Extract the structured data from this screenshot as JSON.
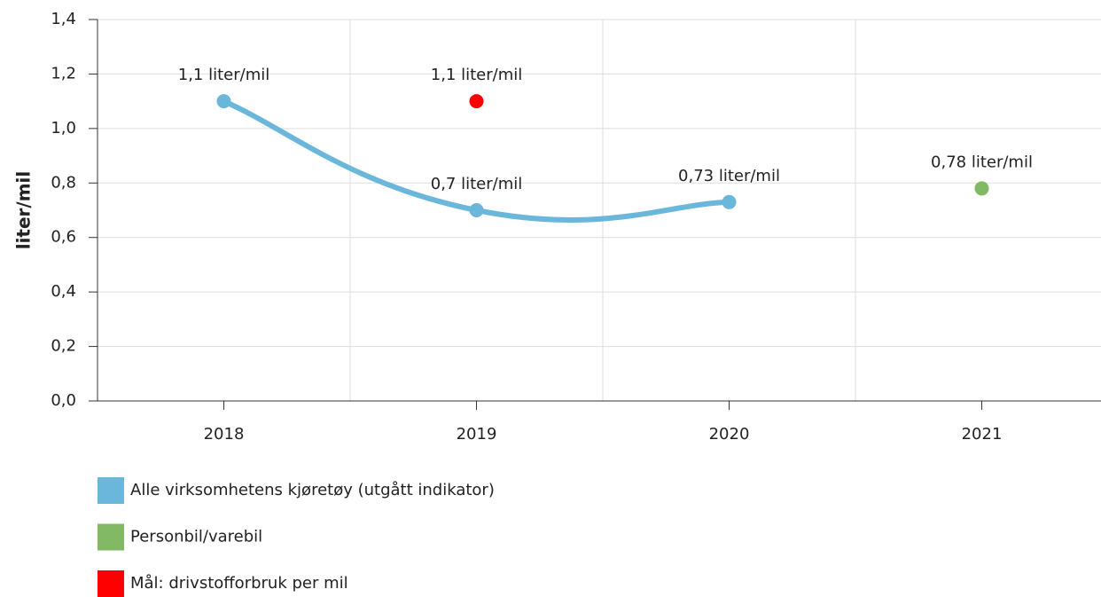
{
  "chart_data": {
    "type": "line",
    "y_label": "liter/mil",
    "categories": [
      "2018",
      "2019",
      "2020",
      "2021"
    ],
    "series": [
      {
        "name": "Alle virksomhetens kjøretøy (utgått indikator)",
        "color": "#6bb7db",
        "values": [
          1.1,
          0.7,
          0.73,
          null
        ],
        "value_labels": [
          "1,1 liter/mil",
          "0,7 liter/mil",
          "0,73 liter/mil",
          null
        ]
      },
      {
        "name": "Personbil/varebil",
        "color": "#82b964",
        "values": [
          null,
          null,
          null,
          0.78
        ],
        "value_labels": [
          null,
          null,
          null,
          "0,78 liter/mil"
        ]
      },
      {
        "name": "Mål: drivstofforbruk per mil",
        "color": "#ff0000",
        "values": [
          null,
          1.1,
          null,
          null
        ],
        "value_labels": [
          null,
          "1,1 liter/mil",
          null,
          null
        ]
      }
    ],
    "ylim": [
      0,
      1.4
    ],
    "yticks": [
      {
        "value": 0,
        "label": "0,0"
      },
      {
        "value": 0.2,
        "label": "0,2"
      },
      {
        "value": 0.4,
        "label": "0,4"
      },
      {
        "value": 0.6,
        "label": "0,6"
      },
      {
        "value": 0.8,
        "label": "0,8"
      },
      {
        "value": 1.0,
        "label": "1,0"
      },
      {
        "value": 1.2,
        "label": "1,2"
      },
      {
        "value": 1.4,
        "label": "1,4"
      }
    ],
    "grid": true
  }
}
